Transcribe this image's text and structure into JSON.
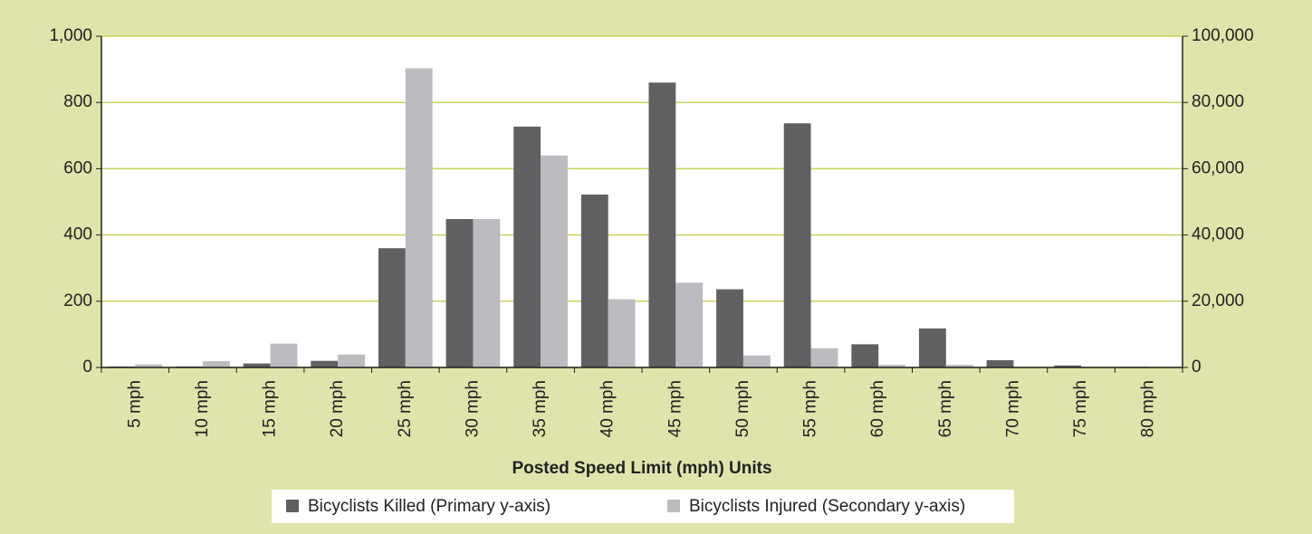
{
  "chart_data": {
    "type": "bar",
    "x_label": "Posted Speed Limit (mph) Units",
    "categories": [
      "5 mph",
      "10 mph",
      "15 mph",
      "20 mph",
      "25 mph",
      "30 mph",
      "35 mph",
      "40 mph",
      "45 mph",
      "50 mph",
      "55 mph",
      "60 mph",
      "65 mph",
      "70 mph",
      "75 mph",
      "80 mph"
    ],
    "series": [
      {
        "name": "Bicyclists Killed (Primary y-axis)",
        "color": "#606063",
        "axis": "y",
        "values": [
          3,
          3,
          12,
          20,
          360,
          448,
          727,
          522,
          860,
          236,
          737,
          70,
          118,
          22,
          6,
          2
        ]
      },
      {
        "name": "Bicyclists Injured (Secondary y-axis)",
        "color": "#bbbcc0",
        "axis": "y2",
        "values": [
          900,
          1900,
          7200,
          3900,
          90300,
          44800,
          64000,
          20600,
          25600,
          3600,
          5800,
          800,
          800,
          200,
          100,
          100
        ]
      }
    ],
    "ylim": [
      0,
      1000
    ],
    "yticks": [
      0,
      200,
      400,
      600,
      800,
      {
        "value": 1000,
        "label": "1,000"
      }
    ],
    "y2lim": [
      0,
      100000
    ],
    "y2ticks": [
      0,
      {
        "value": 20000,
        "label": "20,000"
      },
      {
        "value": 40000,
        "label": "40,000"
      },
      {
        "value": 60000,
        "label": "60,000"
      },
      {
        "value": 80000,
        "label": "80,000"
      },
      {
        "value": 100000,
        "label": "100,000"
      }
    ],
    "grid": true,
    "grid_color": "#c8d35e",
    "legend": "bottom"
  }
}
